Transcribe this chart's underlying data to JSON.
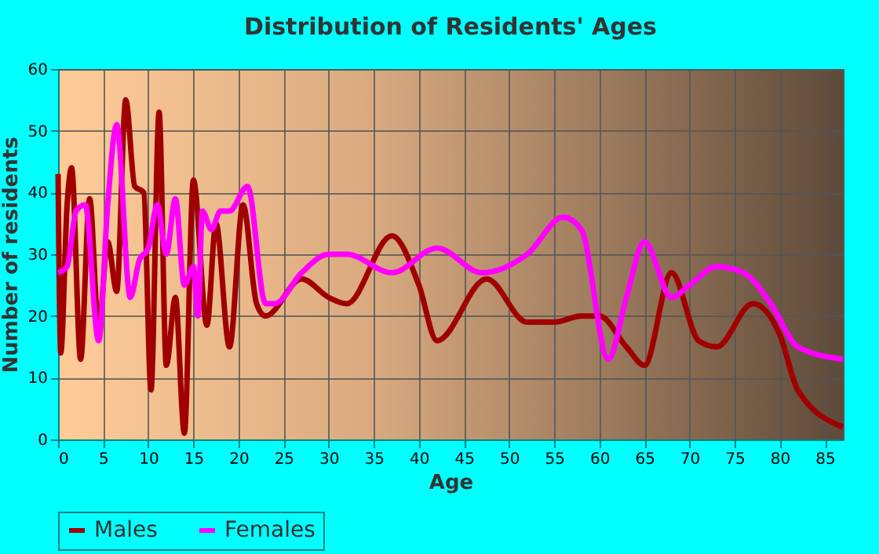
{
  "chart_data": {
    "type": "line",
    "title": "Distribution of Residents' Ages",
    "xlabel": "Age",
    "ylabel": "Number of residents",
    "xlim": [
      0,
      87
    ],
    "xticks": [
      0,
      5,
      10,
      15,
      20,
      25,
      30,
      35,
      40,
      45,
      50,
      55,
      60,
      65,
      70,
      75,
      80,
      85
    ],
    "ylim": [
      0,
      60
    ],
    "yticks": [
      0,
      10,
      20,
      30,
      40,
      50,
      60
    ],
    "grid": true,
    "legend": "bottom",
    "marker": "none",
    "line_style": "solid",
    "series": [
      {
        "name": "Males",
        "color": "#a00000",
        "x": [
          0,
          0.3,
          1,
          1.5,
          2.5,
          3.5,
          4.5,
          5.5,
          6.5,
          7.5,
          8.5,
          9.5,
          10.3,
          11.2,
          12,
          13,
          14,
          15,
          16.5,
          17.5,
          19,
          20.5,
          22,
          23,
          27,
          30,
          32,
          37,
          40,
          42,
          47.5,
          52,
          55,
          58,
          60,
          63,
          65,
          68,
          71,
          73,
          77,
          80,
          82,
          87
        ],
        "values": [
          43,
          14,
          38,
          44,
          13,
          39,
          18,
          32,
          24,
          55,
          41,
          40,
          8,
          53,
          12,
          23,
          1,
          42,
          18.5,
          35,
          15,
          38,
          22,
          20,
          26,
          23,
          22,
          33,
          25,
          16,
          26,
          19,
          19,
          20,
          20,
          15,
          12,
          27,
          16,
          15,
          22,
          17,
          8,
          2
        ]
      },
      {
        "name": "Females",
        "color": "#ff00ff",
        "x": [
          0,
          1,
          2,
          3,
          4.5,
          5.5,
          6.5,
          8,
          9,
          10,
          11,
          12,
          13,
          14,
          15,
          15.5,
          16,
          17,
          18,
          19,
          21,
          23,
          24,
          27,
          30,
          32,
          37,
          42,
          47,
          52,
          56,
          58,
          61,
          63,
          65,
          68,
          70,
          73,
          76,
          79,
          82,
          87
        ],
        "values": [
          27,
          28,
          37,
          38,
          16,
          38,
          51,
          23,
          29,
          31,
          38,
          30,
          39,
          25,
          28,
          20,
          37,
          34,
          37,
          37,
          41,
          22,
          22,
          27,
          30,
          30,
          27,
          31,
          27,
          30,
          36,
          34,
          13,
          23,
          32,
          23,
          25,
          28,
          27,
          22,
          15,
          13
        ]
      }
    ]
  }
}
